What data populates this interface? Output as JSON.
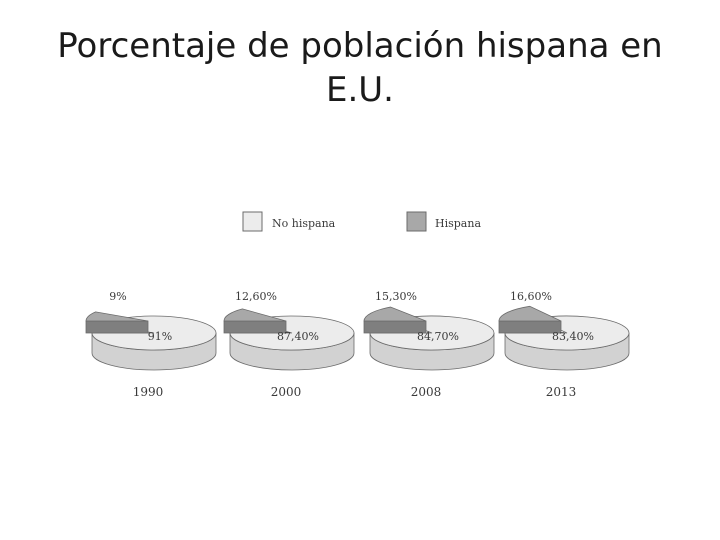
{
  "slide": {
    "title": "Porcentaje de población hispana en E.U."
  },
  "colors": {
    "no_hispana": "#ececec",
    "no_hispana_side": "#d2d2d2",
    "hispana": "#a8a8a8",
    "hispana_side": "#7f7f7f",
    "outline": "#6b6b6b",
    "label": "#3a3a3a"
  },
  "chart_data": {
    "type": "pie",
    "style": "3d-exploded",
    "legend_position": "top",
    "legend": [
      {
        "key": "no_hispana",
        "label": "No hispana"
      },
      {
        "key": "hispana",
        "label": "Hispana"
      }
    ],
    "series": [
      {
        "name": "1990",
        "values": [
          {
            "label": "No hispana",
            "value": 91,
            "text": "91%"
          },
          {
            "label": "Hispana",
            "value": 9,
            "text": "9%"
          }
        ]
      },
      {
        "name": "2000",
        "values": [
          {
            "label": "No hispana",
            "value": 87.4,
            "text": "87,40%"
          },
          {
            "label": "Hispana",
            "value": 12.6,
            "text": "12,60%"
          }
        ]
      },
      {
        "name": "2008",
        "values": [
          {
            "label": "No hispana",
            "value": 84.7,
            "text": "84,70%"
          },
          {
            "label": "Hispana",
            "value": 15.3,
            "text": "15,30%"
          }
        ]
      },
      {
        "name": "2013",
        "values": [
          {
            "label": "No hispana",
            "value": 83.4,
            "text": "83,40%"
          },
          {
            "label": "Hispana",
            "value": 16.6,
            "text": "16,60%"
          }
        ]
      }
    ]
  }
}
